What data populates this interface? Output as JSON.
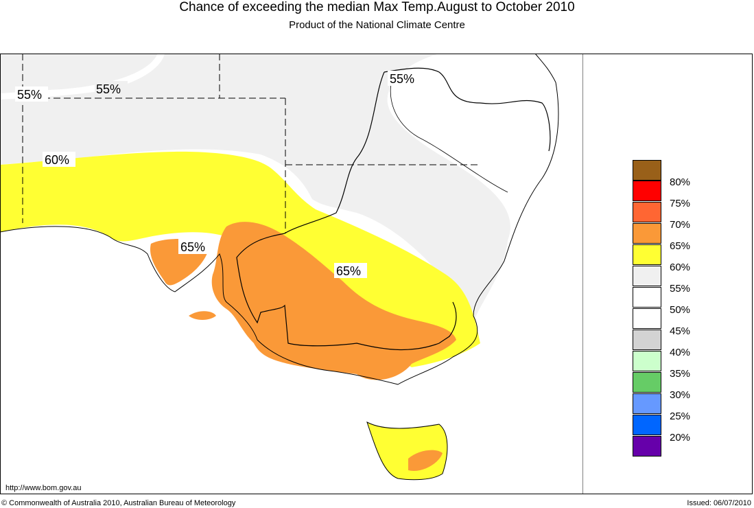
{
  "title": "Chance of exceeding the median Max Temp.August to October 2010",
  "subtitle": "Product of the National Climate Centre",
  "contour_labels": [
    {
      "text": "55%",
      "id": "contour-label-55-west"
    },
    {
      "text": "55%",
      "id": "contour-label-55-central"
    },
    {
      "text": "55%",
      "id": "contour-label-55-east"
    },
    {
      "text": "60%",
      "id": "contour-label-60"
    },
    {
      "text": "65%",
      "id": "contour-label-65-west"
    },
    {
      "text": "65%",
      "id": "contour-label-65-east"
    }
  ],
  "legend": [
    {
      "label": "80%",
      "color": "#996019"
    },
    {
      "label": "75%",
      "color": "#ff0000"
    },
    {
      "label": "70%",
      "color": "#ff6633"
    },
    {
      "label": "65%",
      "color": "#fa9938"
    },
    {
      "label": "60%",
      "color": "#ffff33"
    },
    {
      "label": "55%",
      "color": "#f0f0f0"
    },
    {
      "label": "50%",
      "color": "#ffffff"
    },
    {
      "label": "45%",
      "color": "#ffffff"
    },
    {
      "label": "40%",
      "color": "#d3d3d3"
    },
    {
      "label": "35%",
      "color": "#ccffcc"
    },
    {
      "label": "30%",
      "color": "#66cc66"
    },
    {
      "label": "25%",
      "color": "#6699ff"
    },
    {
      "label": "20%",
      "color": "#0066ff"
    },
    {
      "label": "",
      "color": "#6600aa"
    }
  ],
  "footer": {
    "url": "http://www.bom.gov.au",
    "copyright": "© Commonwealth of Australia 2010, Australian Bureau of Meteorology",
    "issued": "Issued: 06/07/2010"
  }
}
